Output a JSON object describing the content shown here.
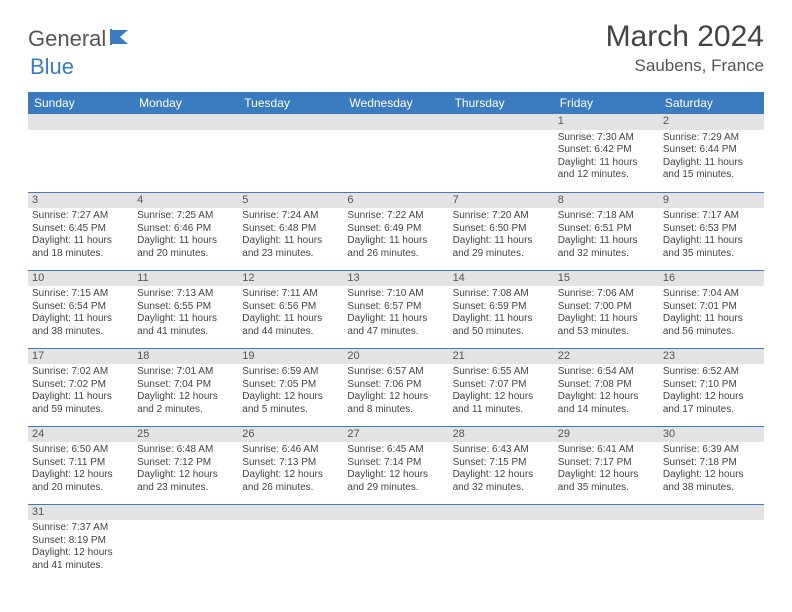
{
  "brand": {
    "part1": "General",
    "part2": "Blue"
  },
  "title": "March 2024",
  "location": "Saubens, France",
  "colors": {
    "header_bg": "#3b7bbf",
    "header_text": "#ffffff",
    "daynum_bg": "#e3e3e3",
    "text": "#444444",
    "rule": "#3b7bbf"
  },
  "fonts": {
    "title_size": 30,
    "location_size": 17,
    "dayhead_size": 12,
    "cell_size": 10
  },
  "day_names": [
    "Sunday",
    "Monday",
    "Tuesday",
    "Wednesday",
    "Thursday",
    "Friday",
    "Saturday"
  ],
  "weeks": [
    [
      {
        "n": "",
        "t": ""
      },
      {
        "n": "",
        "t": ""
      },
      {
        "n": "",
        "t": ""
      },
      {
        "n": "",
        "t": ""
      },
      {
        "n": "",
        "t": ""
      },
      {
        "n": "1",
        "t": "Sunrise: 7:30 AM\nSunset: 6:42 PM\nDaylight: 11 hours and 12 minutes."
      },
      {
        "n": "2",
        "t": "Sunrise: 7:29 AM\nSunset: 6:44 PM\nDaylight: 11 hours and 15 minutes."
      }
    ],
    [
      {
        "n": "3",
        "t": "Sunrise: 7:27 AM\nSunset: 6:45 PM\nDaylight: 11 hours and 18 minutes."
      },
      {
        "n": "4",
        "t": "Sunrise: 7:25 AM\nSunset: 6:46 PM\nDaylight: 11 hours and 20 minutes."
      },
      {
        "n": "5",
        "t": "Sunrise: 7:24 AM\nSunset: 6:48 PM\nDaylight: 11 hours and 23 minutes."
      },
      {
        "n": "6",
        "t": "Sunrise: 7:22 AM\nSunset: 6:49 PM\nDaylight: 11 hours and 26 minutes."
      },
      {
        "n": "7",
        "t": "Sunrise: 7:20 AM\nSunset: 6:50 PM\nDaylight: 11 hours and 29 minutes."
      },
      {
        "n": "8",
        "t": "Sunrise: 7:18 AM\nSunset: 6:51 PM\nDaylight: 11 hours and 32 minutes."
      },
      {
        "n": "9",
        "t": "Sunrise: 7:17 AM\nSunset: 6:53 PM\nDaylight: 11 hours and 35 minutes."
      }
    ],
    [
      {
        "n": "10",
        "t": "Sunrise: 7:15 AM\nSunset: 6:54 PM\nDaylight: 11 hours and 38 minutes."
      },
      {
        "n": "11",
        "t": "Sunrise: 7:13 AM\nSunset: 6:55 PM\nDaylight: 11 hours and 41 minutes."
      },
      {
        "n": "12",
        "t": "Sunrise: 7:11 AM\nSunset: 6:56 PM\nDaylight: 11 hours and 44 minutes."
      },
      {
        "n": "13",
        "t": "Sunrise: 7:10 AM\nSunset: 6:57 PM\nDaylight: 11 hours and 47 minutes."
      },
      {
        "n": "14",
        "t": "Sunrise: 7:08 AM\nSunset: 6:59 PM\nDaylight: 11 hours and 50 minutes."
      },
      {
        "n": "15",
        "t": "Sunrise: 7:06 AM\nSunset: 7:00 PM\nDaylight: 11 hours and 53 minutes."
      },
      {
        "n": "16",
        "t": "Sunrise: 7:04 AM\nSunset: 7:01 PM\nDaylight: 11 hours and 56 minutes."
      }
    ],
    [
      {
        "n": "17",
        "t": "Sunrise: 7:02 AM\nSunset: 7:02 PM\nDaylight: 11 hours and 59 minutes."
      },
      {
        "n": "18",
        "t": "Sunrise: 7:01 AM\nSunset: 7:04 PM\nDaylight: 12 hours and 2 minutes."
      },
      {
        "n": "19",
        "t": "Sunrise: 6:59 AM\nSunset: 7:05 PM\nDaylight: 12 hours and 5 minutes."
      },
      {
        "n": "20",
        "t": "Sunrise: 6:57 AM\nSunset: 7:06 PM\nDaylight: 12 hours and 8 minutes."
      },
      {
        "n": "21",
        "t": "Sunrise: 6:55 AM\nSunset: 7:07 PM\nDaylight: 12 hours and 11 minutes."
      },
      {
        "n": "22",
        "t": "Sunrise: 6:54 AM\nSunset: 7:08 PM\nDaylight: 12 hours and 14 minutes."
      },
      {
        "n": "23",
        "t": "Sunrise: 6:52 AM\nSunset: 7:10 PM\nDaylight: 12 hours and 17 minutes."
      }
    ],
    [
      {
        "n": "24",
        "t": "Sunrise: 6:50 AM\nSunset: 7:11 PM\nDaylight: 12 hours and 20 minutes."
      },
      {
        "n": "25",
        "t": "Sunrise: 6:48 AM\nSunset: 7:12 PM\nDaylight: 12 hours and 23 minutes."
      },
      {
        "n": "26",
        "t": "Sunrise: 6:46 AM\nSunset: 7:13 PM\nDaylight: 12 hours and 26 minutes."
      },
      {
        "n": "27",
        "t": "Sunrise: 6:45 AM\nSunset: 7:14 PM\nDaylight: 12 hours and 29 minutes."
      },
      {
        "n": "28",
        "t": "Sunrise: 6:43 AM\nSunset: 7:15 PM\nDaylight: 12 hours and 32 minutes."
      },
      {
        "n": "29",
        "t": "Sunrise: 6:41 AM\nSunset: 7:17 PM\nDaylight: 12 hours and 35 minutes."
      },
      {
        "n": "30",
        "t": "Sunrise: 6:39 AM\nSunset: 7:18 PM\nDaylight: 12 hours and 38 minutes."
      }
    ],
    [
      {
        "n": "31",
        "t": "Sunrise: 7:37 AM\nSunset: 8:19 PM\nDaylight: 12 hours and 41 minutes."
      },
      {
        "n": "",
        "t": ""
      },
      {
        "n": "",
        "t": ""
      },
      {
        "n": "",
        "t": ""
      },
      {
        "n": "",
        "t": ""
      },
      {
        "n": "",
        "t": ""
      },
      {
        "n": "",
        "t": ""
      }
    ]
  ]
}
